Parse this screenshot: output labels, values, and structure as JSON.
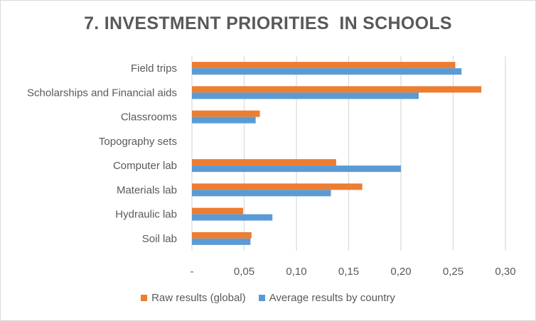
{
  "chart_data": {
    "type": "bar",
    "orientation": "horizontal",
    "title": "7. INVESTMENT PRIORITIES  IN SCHOOLS",
    "categories": [
      "Field trips",
      "Scholarships and Financial aids",
      "Classrooms",
      "Topography sets",
      "Computer lab",
      "Materials lab",
      "Hydraulic lab",
      "Soil lab"
    ],
    "series": [
      {
        "name": "Raw results (global)",
        "color": "#ED7D31",
        "values": [
          0.252,
          0.277,
          0.065,
          0,
          0.138,
          0.163,
          0.049,
          0.057
        ]
      },
      {
        "name": "Average results by country",
        "color": "#5B9BD5",
        "values": [
          0.258,
          0.217,
          0.061,
          0,
          0.2,
          0.133,
          0.077,
          0.056
        ]
      }
    ],
    "xlim": [
      0,
      0.3
    ],
    "xticks": [
      0,
      0.05,
      0.1,
      0.15,
      0.2,
      0.25,
      0.3
    ],
    "xtick_labels": [
      "-",
      "0,05",
      "0,10",
      "0,15",
      "0,20",
      "0,25",
      "0,30"
    ],
    "grid": true,
    "legend_position": "bottom",
    "xlabel": "",
    "ylabel": ""
  }
}
